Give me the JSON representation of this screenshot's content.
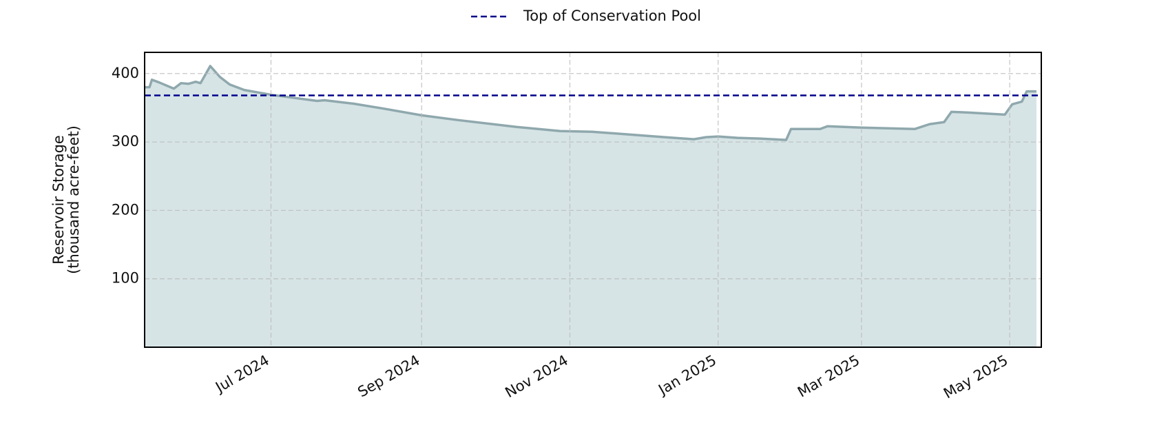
{
  "chart_data": {
    "type": "area",
    "ylabel": [
      "Reservoir Storage",
      "(thousand acre-feet)"
    ],
    "xlim": [
      "2024-05-10",
      "2025-05-14"
    ],
    "ylim": [
      0,
      431
    ],
    "yticks": [
      100,
      200,
      300,
      400
    ],
    "xticks": [
      {
        "value": "2024-07-01",
        "label": "Jul 2024"
      },
      {
        "value": "2024-09-01",
        "label": "Sep 2024"
      },
      {
        "value": "2024-11-01",
        "label": "Nov 2024"
      },
      {
        "value": "2025-01-01",
        "label": "Jan 2025"
      },
      {
        "value": "2025-03-01",
        "label": "Mar 2025"
      },
      {
        "value": "2025-05-01",
        "label": "May 2025"
      }
    ],
    "grid": true,
    "legend": "top",
    "series": [
      {
        "color": "#8fa8ad",
        "fill": "#d6e4e6",
        "x": [
          "2024-05-10",
          "2024-05-12",
          "2024-05-13",
          "2024-05-16",
          "2024-05-22",
          "2024-05-25",
          "2024-05-28",
          "2024-05-31",
          "2024-06-02",
          "2024-06-06",
          "2024-06-10",
          "2024-06-14",
          "2024-06-20",
          "2024-07-01",
          "2024-07-20",
          "2024-07-23",
          "2024-08-04",
          "2024-08-16",
          "2024-09-01",
          "2024-09-16",
          "2024-10-10",
          "2024-10-28",
          "2024-11-10",
          "2024-11-25",
          "2024-12-10",
          "2024-12-22",
          "2024-12-27",
          "2025-01-01",
          "2025-01-09",
          "2025-01-18",
          "2025-01-29",
          "2025-01-31",
          "2025-02-12",
          "2025-02-15",
          "2025-03-01",
          "2025-03-23",
          "2025-03-29",
          "2025-04-04",
          "2025-04-07",
          "2025-04-14",
          "2025-04-29",
          "2025-05-02",
          "2025-05-06",
          "2025-05-08",
          "2025-05-12"
        ],
        "values": [
          380,
          380,
          391,
          387,
          378,
          386,
          385,
          388,
          386,
          411,
          395,
          384,
          376,
          369,
          360,
          361,
          356,
          349,
          339,
          332,
          322,
          316,
          315,
          311,
          307,
          304,
          307,
          308,
          306,
          305,
          303,
          319,
          319,
          323,
          321,
          319,
          326,
          329,
          344,
          343,
          340,
          355,
          359,
          374,
          374
        ]
      }
    ],
    "reference_lines": [
      {
        "name": "Top of Conservation Pool",
        "value": 368,
        "color": "#00008b",
        "style": "dashed"
      }
    ]
  }
}
